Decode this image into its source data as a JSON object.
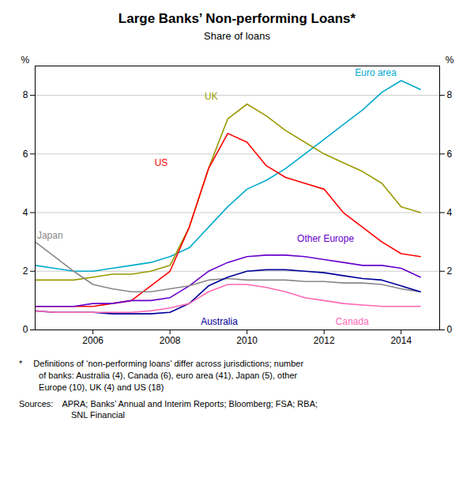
{
  "chart_data": {
    "type": "line",
    "title": "Large Banks’ Non-performing Loans*",
    "subtitle": "Share of loans",
    "ylabel": "%",
    "y2label": "%",
    "x": [
      2004.5,
      2005,
      2005.5,
      2006,
      2006.5,
      2007,
      2007.5,
      2008,
      2008.5,
      2009,
      2009.5,
      2010,
      2010.5,
      2011,
      2011.5,
      2012,
      2012.5,
      2013,
      2013.5,
      2014,
      2014.5
    ],
    "series": [
      {
        "name": "Euro area",
        "color": "#00AACC",
        "values": [
          2.2,
          2.1,
          2.0,
          2.0,
          2.1,
          2.2,
          2.3,
          2.5,
          2.8,
          3.5,
          4.2,
          4.8,
          5.1,
          5.5,
          6.0,
          6.5,
          7.0,
          7.5,
          8.1,
          8.5,
          8.2
        ]
      },
      {
        "name": "UK",
        "color": "#999900",
        "values": [
          1.7,
          1.7,
          1.7,
          1.8,
          1.9,
          1.9,
          2.0,
          2.2,
          3.5,
          5.5,
          7.2,
          7.7,
          7.3,
          6.8,
          6.4,
          6.0,
          5.7,
          5.4,
          5.0,
          4.2,
          4.0
        ]
      },
      {
        "name": "US",
        "color": "#FF0000",
        "values": [
          0.8,
          0.8,
          0.8,
          0.8,
          0.9,
          1.0,
          1.5,
          2.0,
          3.5,
          5.5,
          6.7,
          6.4,
          5.6,
          5.2,
          5.0,
          4.8,
          4.0,
          3.5,
          3.0,
          2.6,
          2.5
        ]
      },
      {
        "name": "Other Europe",
        "color": "#6600CC",
        "values": [
          0.8,
          0.8,
          0.8,
          0.9,
          0.9,
          1.0,
          1.0,
          1.1,
          1.5,
          2.0,
          2.3,
          2.5,
          2.55,
          2.55,
          2.5,
          2.4,
          2.3,
          2.2,
          2.2,
          2.1,
          1.8
        ]
      },
      {
        "name": "Japan",
        "color": "#888888",
        "values": [
          3.0,
          2.5,
          2.0,
          1.55,
          1.4,
          1.3,
          1.3,
          1.4,
          1.5,
          1.7,
          1.75,
          1.7,
          1.7,
          1.7,
          1.65,
          1.65,
          1.6,
          1.6,
          1.55,
          1.4,
          1.3
        ]
      },
      {
        "name": "Australia",
        "color": "#000099",
        "values": [
          0.65,
          0.6,
          0.6,
          0.6,
          0.55,
          0.55,
          0.55,
          0.6,
          0.9,
          1.5,
          1.8,
          2.0,
          2.05,
          2.05,
          2.0,
          1.95,
          1.85,
          1.75,
          1.7,
          1.5,
          1.3
        ]
      },
      {
        "name": "Canada",
        "color": "#FF69B4",
        "values": [
          0.65,
          0.6,
          0.6,
          0.6,
          0.6,
          0.6,
          0.65,
          0.75,
          0.9,
          1.3,
          1.55,
          1.55,
          1.45,
          1.3,
          1.1,
          1.0,
          0.9,
          0.85,
          0.8,
          0.8,
          0.8
        ]
      }
    ],
    "xlim": [
      2004.5,
      2015.0
    ],
    "xticks": [
      2006,
      2008,
      2010,
      2012,
      2014
    ],
    "ylim": [
      0,
      9
    ],
    "yticks": [
      0,
      2,
      4,
      6,
      8
    ],
    "y2lim": [
      0,
      9
    ],
    "y2ticks": [
      0,
      2,
      4,
      6,
      8
    ],
    "grid": true,
    "annotations": [
      {
        "text": "Euro area",
        "x": 2012.8,
        "y": 8.65
      },
      {
        "text": "UK",
        "x": 2008.9,
        "y": 7.85
      },
      {
        "text": "US",
        "x": 2007.6,
        "y": 5.6
      },
      {
        "text": "Other Europe",
        "x": 2011.3,
        "y": 3.0
      },
      {
        "text": "Japan",
        "x": 2004.55,
        "y": 3.1
      },
      {
        "text": "Australia",
        "x": 2008.8,
        "y": 0.18
      },
      {
        "text": "Canada",
        "x": 2012.3,
        "y": 0.18
      }
    ],
    "footnote": "*  Definitions of ‘non-performing loans’ differ across jurisdictions; number\n   of banks: Australia (4), Canada (6), euro area (41), Japan (5), other\n   Europe (10), UK (4) and US (18)",
    "sources": "Sources: APRA; Banks’ Annual and Interim Reports; Bloomberg; FSA; RBA;\n      SNL Financial"
  }
}
